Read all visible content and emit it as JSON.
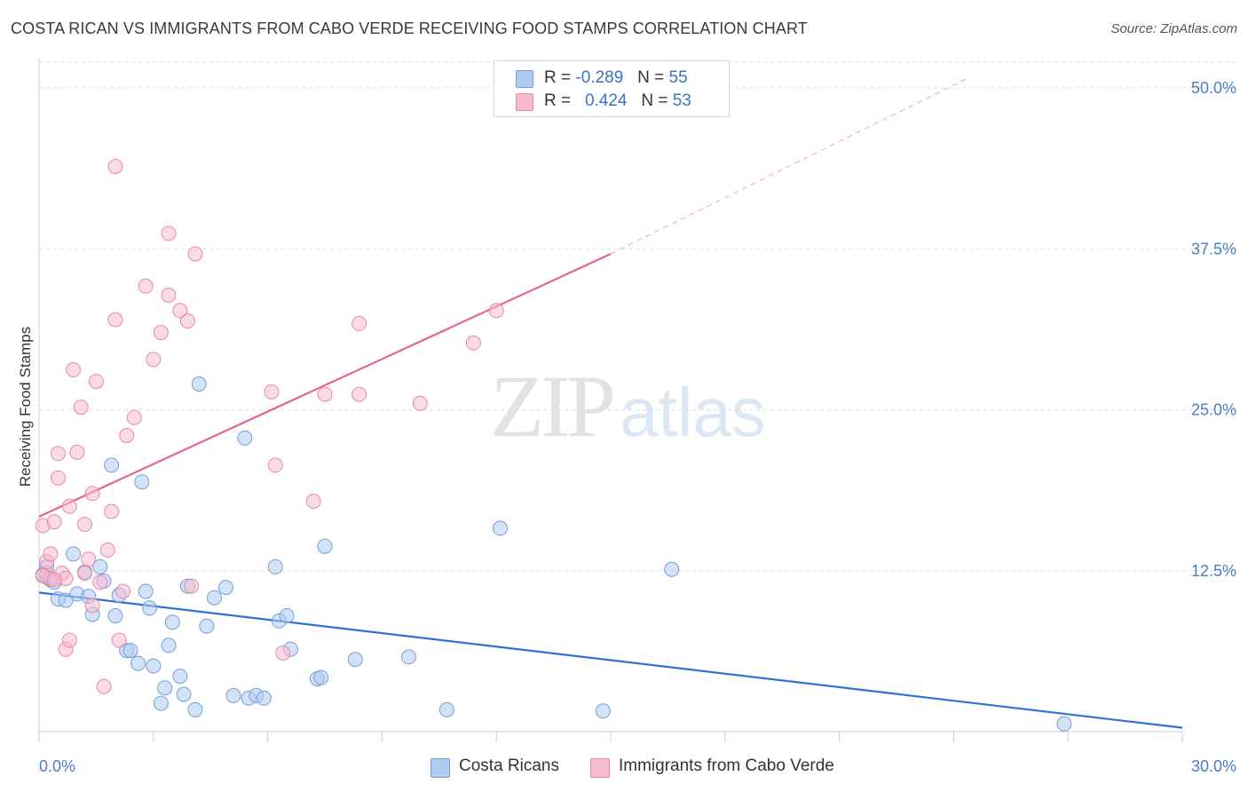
{
  "header": {
    "title": "COSTA RICAN VS IMMIGRANTS FROM CABO VERDE RECEIVING FOOD STAMPS CORRELATION CHART",
    "source": "Source: ZipAtlas.com"
  },
  "watermark": {
    "zip": "ZIP",
    "atlas": "atlas"
  },
  "legend": {
    "rows": [
      {
        "r_label": "R =",
        "r_value": "-0.289",
        "n_label": "N =",
        "n_value": "55",
        "color": "#aecbf0"
      },
      {
        "r_label": "R =",
        "r_value": "0.424",
        "n_label": "N =",
        "n_value": "53",
        "color": "#f6bccd"
      }
    ]
  },
  "bottom_legend": {
    "items": [
      {
        "label": "Costa Ricans",
        "color": "#aecbf0"
      },
      {
        "label": "Immigrants from Cabo Verde",
        "color": "#f6bccd"
      }
    ]
  },
  "chart_data": {
    "type": "scatter",
    "title": "COSTA RICAN VS IMMIGRANTS FROM CABO VERDE RECEIVING FOOD STAMPS CORRELATION CHART",
    "xlabel": "",
    "ylabel": "Receiving Food Stamps",
    "xlim": [
      0,
      30
    ],
    "ylim": [
      0,
      52
    ],
    "x_tick_labels": [
      "0.0%",
      "30.0%"
    ],
    "y_ticks": [
      12.5,
      25.0,
      37.5,
      50.0
    ],
    "y_tick_labels": [
      "12.5%",
      "25.0%",
      "37.5%",
      "50.0%"
    ],
    "grid": "horizontal dashed",
    "legend_position": "top-center",
    "series": [
      {
        "name": "Costa Ricans",
        "color": "#aecbf0",
        "stroke": "#6f9fdc",
        "trend_color": "#2f6fd6",
        "trend": {
          "x0": 0,
          "y0": 10.8,
          "x1": 30,
          "y1": 0.3
        },
        "points": [
          [
            0.2,
            12.8
          ],
          [
            0.2,
            12.0
          ],
          [
            0.3,
            11.8
          ],
          [
            0.4,
            11.6
          ],
          [
            0.5,
            10.3
          ],
          [
            0.7,
            10.2
          ],
          [
            0.9,
            13.8
          ],
          [
            1.0,
            10.7
          ],
          [
            1.2,
            12.4
          ],
          [
            1.3,
            10.5
          ],
          [
            1.4,
            9.1
          ],
          [
            1.6,
            12.8
          ],
          [
            1.7,
            11.7
          ],
          [
            1.9,
            20.7
          ],
          [
            2.0,
            9.0
          ],
          [
            2.1,
            10.6
          ],
          [
            2.3,
            6.3
          ],
          [
            2.4,
            6.3
          ],
          [
            2.6,
            5.3
          ],
          [
            2.7,
            19.4
          ],
          [
            2.8,
            10.9
          ],
          [
            2.9,
            9.6
          ],
          [
            3.0,
            5.1
          ],
          [
            3.2,
            2.2
          ],
          [
            3.3,
            3.4
          ],
          [
            3.4,
            6.7
          ],
          [
            3.5,
            8.5
          ],
          [
            3.7,
            4.3
          ],
          [
            3.8,
            2.9
          ],
          [
            3.9,
            11.3
          ],
          [
            4.1,
            1.7
          ],
          [
            4.2,
            27.0
          ],
          [
            4.4,
            8.2
          ],
          [
            4.6,
            10.4
          ],
          [
            4.9,
            11.2
          ],
          [
            5.1,
            2.8
          ],
          [
            5.4,
            22.8
          ],
          [
            5.5,
            2.6
          ],
          [
            5.7,
            2.8
          ],
          [
            5.9,
            2.6
          ],
          [
            6.2,
            12.8
          ],
          [
            6.3,
            8.6
          ],
          [
            6.5,
            9.0
          ],
          [
            6.6,
            6.4
          ],
          [
            7.3,
            4.1
          ],
          [
            7.4,
            4.2
          ],
          [
            7.5,
            14.4
          ],
          [
            8.3,
            5.6
          ],
          [
            9.7,
            5.8
          ],
          [
            10.7,
            1.7
          ],
          [
            12.1,
            15.8
          ],
          [
            14.8,
            1.6
          ],
          [
            16.6,
            12.6
          ],
          [
            26.9,
            0.6
          ],
          [
            0.1,
            12.2
          ]
        ]
      },
      {
        "name": "Immigrants from Cabo Verde",
        "color": "#f6bccd",
        "stroke": "#e889a6",
        "trend_color": "#e36591",
        "trend": {
          "x0": 0,
          "y0": 16.7,
          "x1": 15.0,
          "y1": 37.1
        },
        "trend_dashed_to": {
          "x": 24.4,
          "y": 50.8
        },
        "points": [
          [
            0.1,
            16.0
          ],
          [
            0.2,
            12.3
          ],
          [
            0.2,
            13.2
          ],
          [
            0.3,
            11.9
          ],
          [
            0.3,
            13.8
          ],
          [
            0.4,
            16.3
          ],
          [
            0.5,
            19.7
          ],
          [
            0.5,
            21.6
          ],
          [
            0.6,
            12.3
          ],
          [
            0.7,
            11.9
          ],
          [
            0.7,
            6.4
          ],
          [
            0.8,
            17.5
          ],
          [
            0.8,
            7.1
          ],
          [
            0.9,
            28.1
          ],
          [
            1.0,
            21.7
          ],
          [
            1.1,
            25.2
          ],
          [
            1.2,
            16.1
          ],
          [
            1.2,
            12.3
          ],
          [
            1.3,
            13.4
          ],
          [
            1.4,
            18.5
          ],
          [
            1.4,
            9.8
          ],
          [
            1.5,
            27.2
          ],
          [
            1.6,
            11.6
          ],
          [
            1.7,
            3.5
          ],
          [
            1.8,
            14.1
          ],
          [
            1.9,
            17.1
          ],
          [
            2.0,
            43.9
          ],
          [
            2.0,
            32.0
          ],
          [
            2.1,
            7.1
          ],
          [
            2.2,
            10.9
          ],
          [
            2.3,
            23.0
          ],
          [
            2.5,
            24.4
          ],
          [
            2.8,
            34.6
          ],
          [
            3.0,
            28.9
          ],
          [
            3.2,
            31.0
          ],
          [
            3.4,
            38.7
          ],
          [
            3.4,
            33.9
          ],
          [
            3.7,
            32.7
          ],
          [
            3.9,
            31.9
          ],
          [
            4.0,
            11.3
          ],
          [
            4.1,
            37.1
          ],
          [
            6.1,
            26.4
          ],
          [
            6.2,
            20.7
          ],
          [
            6.4,
            6.1
          ],
          [
            7.2,
            17.9
          ],
          [
            7.5,
            26.2
          ],
          [
            8.4,
            31.7
          ],
          [
            8.4,
            26.2
          ],
          [
            10.0,
            25.5
          ],
          [
            11.4,
            30.2
          ],
          [
            12.0,
            32.7
          ],
          [
            0.1,
            12.1
          ],
          [
            0.4,
            11.8
          ]
        ]
      }
    ]
  }
}
